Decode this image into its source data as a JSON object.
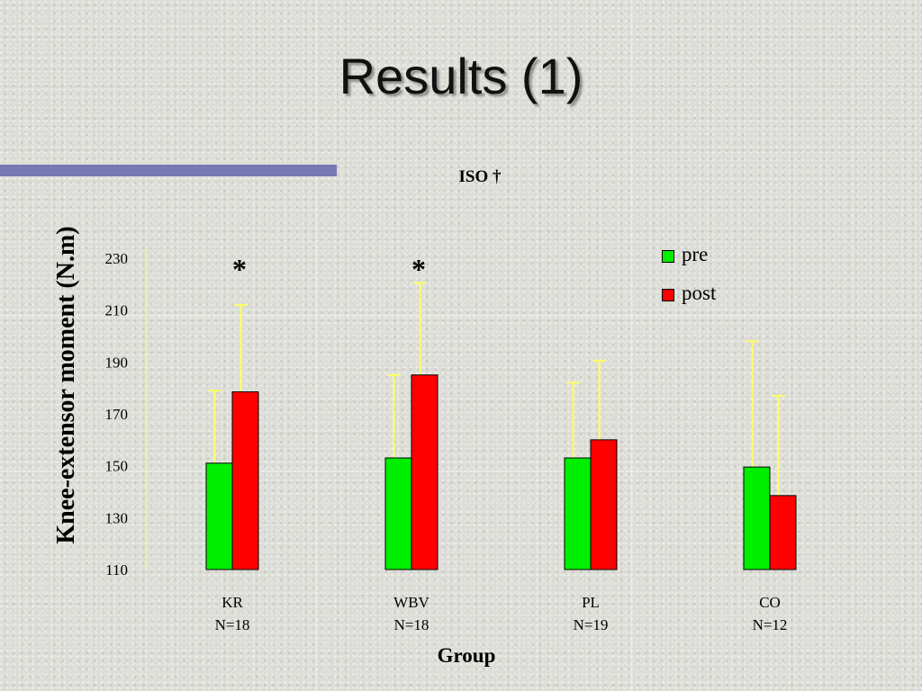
{
  "slide": {
    "title": "Results (1)"
  },
  "colors": {
    "pre": "#00ee00",
    "post": "#ff0000",
    "error_bar": "#ffff66",
    "rule": "#7878b4"
  },
  "chart_data": {
    "type": "bar",
    "title": "ISO †",
    "xlabel": "Group",
    "ylabel": "Knee-extensor moment (N.m)",
    "ylim": [
      110,
      230
    ],
    "yticks": [
      110,
      130,
      150,
      170,
      190,
      210,
      230
    ],
    "categories": [
      {
        "name": "KR",
        "n": "N=18"
      },
      {
        "name": "WBV",
        "n": "N=18"
      },
      {
        "name": "PL",
        "n": "N=19"
      },
      {
        "name": "CO",
        "n": "N=12"
      }
    ],
    "series": [
      {
        "name": "pre",
        "values": [
          151,
          153,
          153,
          149.5
        ],
        "error_upper": [
          179,
          185,
          182,
          198
        ]
      },
      {
        "name": "post",
        "values": [
          178.5,
          185,
          160,
          138.5
        ],
        "error_upper": [
          212,
          220.5,
          190.5,
          177
        ]
      }
    ],
    "annotations": [
      "*",
      "*",
      "",
      ""
    ],
    "legend_position": "top-right",
    "grid": false
  }
}
